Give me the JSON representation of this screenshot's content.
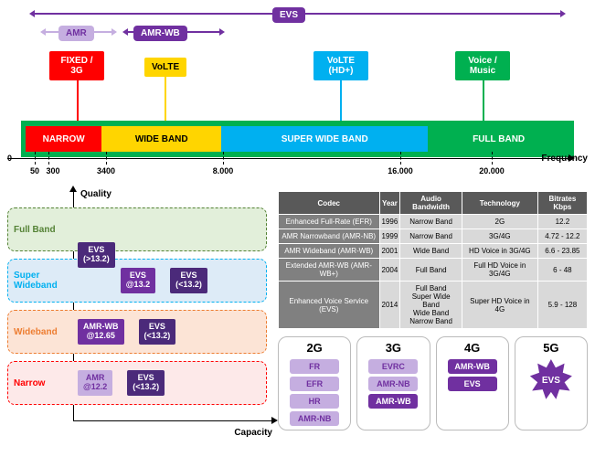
{
  "colors": {
    "purple": "#7030a0",
    "purple_light": "#c5aee0",
    "red": "#ff0000",
    "yellow": "#ffd500",
    "blue": "#00b0f0",
    "green": "#00b050",
    "green_dark": "#548235",
    "orange": "#ed7d31",
    "gray_dark": "#595959",
    "gray_mid": "#808080",
    "gray_light": "#d9d9d9"
  },
  "top": {
    "arrows": {
      "evs": "EVS",
      "amr": "AMR",
      "amrwb": "AMR-WB"
    },
    "boxes": {
      "fixed3g": "FIXED / 3G",
      "volte": "VoLTE",
      "voltehd": "VoLTE (HD+)",
      "voicemusic": "Voice / Music"
    },
    "bands": {
      "narrow": "NARROW",
      "wide": "WIDE BAND",
      "superwide": "SUPER WIDE BAND",
      "full": "FULL BAND"
    },
    "axis_label": "Frequency",
    "zero": "0",
    "ticks": [
      "50",
      "300",
      "3400",
      "8.000",
      "16.000",
      "20.000"
    ]
  },
  "quality": {
    "y_label": "Quality",
    "x_label": "Capacity",
    "lanes": [
      {
        "label": "Full Band",
        "color": "#548235",
        "bg": "#e2efda",
        "items": []
      },
      {
        "label": "Super Wideband",
        "color": "#00b0f0",
        "bg": "#ddebf7",
        "items": [
          {
            "t1": "EVS",
            "t2": "(>13.2)",
            "bg": "#4b2a7a",
            "offset": true
          },
          {
            "t1": "EVS",
            "t2": "@13.2",
            "bg": "#7030a0"
          },
          {
            "t1": "EVS",
            "t2": "(<13.2)",
            "bg": "#4b2a7a"
          }
        ]
      },
      {
        "label": "Wideband",
        "color": "#ed7d31",
        "bg": "#fce4d6",
        "items": [
          {
            "t1": "AMR-WB",
            "t2": "@12.65",
            "bg": "#7030a0"
          },
          {
            "t1": "EVS",
            "t2": "(<13.2)",
            "bg": "#4b2a7a"
          }
        ]
      },
      {
        "label": "Narrow",
        "color": "#ff0000",
        "bg": "#fde9e9",
        "items": [
          {
            "t1": "AMR",
            "t2": "@12.2",
            "bg": "#c5aee0",
            "dark": true
          },
          {
            "t1": "EVS",
            "t2": "(<13.2)",
            "bg": "#4b2a7a"
          }
        ]
      }
    ]
  },
  "table": {
    "headers": [
      "Codec",
      "Year",
      "Audio Bandwidth",
      "Technology",
      "Bitrates Kbps"
    ],
    "rows": [
      [
        "Enhanced Full-Rate (EFR)",
        "1996",
        "Narrow Band",
        "2G",
        "12.2"
      ],
      [
        "AMR Narrowband (AMR-NB)",
        "1999",
        "Narrow Band",
        "3G/4G",
        "4.72 - 12.2"
      ],
      [
        "AMR Wideband (AMR-WB)",
        "2001",
        "Wide Band",
        "HD Voice in 3G/4G",
        "6.6 - 23.85"
      ],
      [
        "Extended AMR-WB (AMR-WB+)",
        "2004",
        "Full Band",
        "Full HD Voice in 3G/4G",
        "6 - 48"
      ],
      [
        "Enhanced Voice Service (EVS)",
        "2014",
        "Full Band\nSuper Wide Band\nWide Band\nNarrow Band",
        "Super HD Voice in 4G",
        "5.9 - 128"
      ]
    ]
  },
  "gens": [
    {
      "title": "2G",
      "items": [
        {
          "t": "FR",
          "bg": "#c5aee0",
          "fg": "#7030a0"
        },
        {
          "t": "EFR",
          "bg": "#c5aee0",
          "fg": "#7030a0"
        },
        {
          "t": "HR",
          "bg": "#c5aee0",
          "fg": "#7030a0"
        },
        {
          "t": "AMR-NB",
          "bg": "#c5aee0",
          "fg": "#7030a0"
        }
      ]
    },
    {
      "title": "3G",
      "items": [
        {
          "t": "EVRC",
          "bg": "#c5aee0",
          "fg": "#7030a0"
        },
        {
          "t": "AMR-NB",
          "bg": "#c5aee0",
          "fg": "#7030a0"
        },
        {
          "t": "AMR-WB",
          "bg": "#7030a0",
          "fg": "#ffffff"
        }
      ]
    },
    {
      "title": "4G",
      "items": [
        {
          "t": "AMR-WB",
          "bg": "#7030a0",
          "fg": "#ffffff"
        },
        {
          "t": "EVS",
          "bg": "#7030a0",
          "fg": "#ffffff"
        }
      ]
    },
    {
      "title": "5G",
      "star": "EVS"
    }
  ]
}
